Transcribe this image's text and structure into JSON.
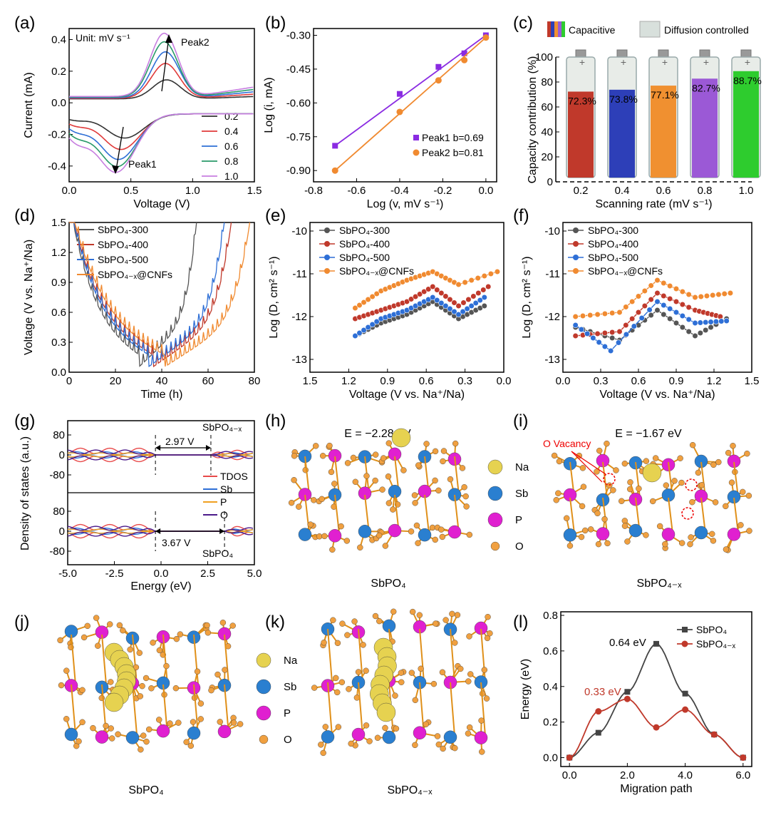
{
  "chart_data": [
    {
      "panel": "(a)",
      "type": "line",
      "xlabel": "Voltage (V)",
      "ylabel": "Current (mA)",
      "xlim": [
        0,
        1.5
      ],
      "ylim": [
        -0.5,
        0.47
      ],
      "xticks": [
        "0.0",
        "0.5",
        "1.0",
        "1.5"
      ],
      "yticks": [
        "0.4",
        "0.2",
        "0.0",
        "-0.2",
        "-0.4"
      ],
      "annotations": [
        "Unit: mV s⁻¹",
        "Peak2",
        "Peak1"
      ],
      "series": [
        {
          "name": "0.2",
          "color": "#333333",
          "peak_oxidation": [
            0.79,
            0.12
          ],
          "peak_reduction": [
            0.45,
            -0.17
          ]
        },
        {
          "name": "0.4",
          "color": "#e03a3a",
          "peak_oxidation": [
            0.78,
            0.22
          ],
          "peak_reduction": [
            0.42,
            -0.25
          ]
        },
        {
          "name": "0.6",
          "color": "#2e6fd6",
          "peak_oxidation": [
            0.78,
            0.29
          ],
          "peak_reduction": [
            0.4,
            -0.32
          ]
        },
        {
          "name": "0.8",
          "color": "#2a9a6a",
          "peak_oxidation": [
            0.77,
            0.35
          ],
          "peak_reduction": [
            0.39,
            -0.37
          ]
        },
        {
          "name": "1.0",
          "color": "#c77ee0",
          "peak_oxidation": [
            0.77,
            0.4
          ],
          "peak_reduction": [
            0.38,
            -0.41
          ]
        }
      ]
    },
    {
      "panel": "(b)",
      "type": "scatter",
      "xlabel": "Log (v, mV s⁻¹)",
      "ylabel": "Log (i, mA)",
      "xlim": [
        -0.8,
        0.05
      ],
      "ylim": [
        -0.95,
        -0.27
      ],
      "xticks": [
        "-0.8",
        "-0.6",
        "-0.4",
        "-0.2",
        "0.0"
      ],
      "yticks": [
        "-0.30",
        "-0.45",
        "-0.60",
        "-0.75",
        "-0.90"
      ],
      "series": [
        {
          "name": "Peak1 b=0.69",
          "color": "#8a2be2",
          "x": [
            -0.7,
            -0.4,
            -0.22,
            -0.1,
            0.0
          ],
          "y": [
            -0.79,
            -0.56,
            -0.44,
            -0.38,
            -0.3
          ]
        },
        {
          "name": "Peak2 b=0.81",
          "color": "#f08a30",
          "x": [
            -0.7,
            -0.4,
            -0.22,
            -0.1,
            0.0
          ],
          "y": [
            -0.9,
            -0.64,
            -0.5,
            -0.41,
            -0.31
          ]
        }
      ]
    },
    {
      "panel": "(c)",
      "type": "bar",
      "xlabel": "Scanning rate (mV s⁻¹)",
      "ylabel": "Capacity contribution (%)",
      "ylim": [
        0,
        100
      ],
      "yticks": [
        "100",
        "80",
        "60",
        "40",
        "20",
        "0"
      ],
      "categories": [
        "0.2",
        "0.4",
        "0.6",
        "0.8",
        "1.0"
      ],
      "values": [
        72.3,
        73.8,
        77.1,
        82.7,
        88.7
      ],
      "labels": [
        "72.3%",
        "73.8%",
        "77.1%",
        "82.7%",
        "88.7%"
      ],
      "colors": [
        "#c0392b",
        "#2d3fb8",
        "#f09030",
        "#9b59d6",
        "#2ecc2e"
      ],
      "legend": [
        "Capacitive",
        "Diffusion controlled"
      ]
    },
    {
      "panel": "(d)",
      "type": "line",
      "xlabel": "Time (h)",
      "ylabel": "Voltage (V vs. Na⁺/Na)",
      "xlim": [
        0,
        80
      ],
      "ylim": [
        0,
        1.5
      ],
      "xticks": [
        "0",
        "20",
        "40",
        "60",
        "80"
      ],
      "yticks": [
        "1.5",
        "1.2",
        "0.9",
        "0.6",
        "0.3",
        "0.0"
      ],
      "series": [
        {
          "name": "SbPO₄-300",
          "color": "#555555",
          "t_min": 30,
          "t_end": 55
        },
        {
          "name": "SbPO₄-400",
          "color": "#c0392b",
          "t_min": 36,
          "t_end": 70
        },
        {
          "name": "SbPO₄-500",
          "color": "#2e6fd6",
          "t_min": 34,
          "t_end": 67
        },
        {
          "name": "SbPO₄₋ₓ@CNFs",
          "color": "#f08a30",
          "t_min": 41,
          "t_end": 78
        }
      ]
    },
    {
      "panel": "(e)",
      "type": "line",
      "xlabel": "Voltage (V vs. Na⁺/Na)",
      "ylabel": "Log (D, cm² s⁻¹)",
      "xlim": [
        1.5,
        0.0
      ],
      "ylim": [
        -13.3,
        -9.8
      ],
      "xticks": [
        "1.5",
        "1.2",
        "0.9",
        "0.6",
        "0.3",
        "0.0"
      ],
      "yticks": [
        "-10",
        "-11",
        "-12",
        "-13"
      ],
      "series": [
        {
          "name": "SbPO₄-300",
          "color": "#555555",
          "x": [
            1.15,
            0.95,
            0.75,
            0.55,
            0.35,
            0.15
          ],
          "y": [
            -12.45,
            -12.15,
            -11.95,
            -11.65,
            -12.05,
            -11.75
          ]
        },
        {
          "name": "SbPO₄-400",
          "color": "#c0392b",
          "x": [
            1.15,
            0.95,
            0.75,
            0.55,
            0.35,
            0.12
          ],
          "y": [
            -12.05,
            -11.85,
            -11.65,
            -11.3,
            -11.75,
            -11.3
          ]
        },
        {
          "name": "SbPO₄-500",
          "color": "#2e6fd6",
          "x": [
            1.15,
            0.95,
            0.75,
            0.55,
            0.35,
            0.15
          ],
          "y": [
            -12.45,
            -12.05,
            -11.85,
            -11.55,
            -11.95,
            -11.55
          ]
        },
        {
          "name": "SbPO₄₋ₓ@CNFs",
          "color": "#f08a30",
          "x": [
            1.15,
            0.95,
            0.75,
            0.55,
            0.35,
            0.05
          ],
          "y": [
            -11.8,
            -11.4,
            -11.15,
            -10.95,
            -11.25,
            -10.95
          ]
        }
      ]
    },
    {
      "panel": "(f)",
      "type": "line",
      "xlabel": "Voltage (V vs. Na⁺/Na)",
      "ylabel": "Log (D, cm² s⁻¹)",
      "xlim": [
        0.0,
        1.5
      ],
      "ylim": [
        -13.3,
        -9.8
      ],
      "xticks": [
        "0.0",
        "0.3",
        "0.6",
        "0.9",
        "1.2",
        "1.5"
      ],
      "yticks": [
        "-10",
        "-11",
        "-12",
        "-13"
      ],
      "series": [
        {
          "name": "SbPO₄-300",
          "color": "#555555",
          "x": [
            0.1,
            0.45,
            0.75,
            1.05,
            1.3
          ],
          "y": [
            -12.25,
            -12.55,
            -11.85,
            -12.45,
            -12.05
          ]
        },
        {
          "name": "SbPO₄-400",
          "color": "#c0392b",
          "x": [
            0.1,
            0.45,
            0.75,
            1.05,
            1.25
          ],
          "y": [
            -12.45,
            -12.35,
            -11.45,
            -11.85,
            -12.0
          ]
        },
        {
          "name": "SbPO₄-500",
          "color": "#2e6fd6",
          "x": [
            0.1,
            0.38,
            0.75,
            1.05,
            1.3
          ],
          "y": [
            -12.2,
            -12.8,
            -11.65,
            -12.15,
            -12.1
          ]
        },
        {
          "name": "SbPO₄₋ₓ@CNFs",
          "color": "#f08a30",
          "x": [
            0.1,
            0.45,
            0.75,
            1.05,
            1.33
          ],
          "y": [
            -12.0,
            -11.9,
            -11.15,
            -11.55,
            -11.45
          ]
        }
      ]
    },
    {
      "panel": "(g)",
      "type": "line",
      "xlabel": "Energy (eV)",
      "ylabel": "Density of states (a.u.)",
      "xlim": [
        -5.0,
        5.0
      ],
      "xticks": [
        "-5.0",
        "-2.5",
        "0.0",
        "2.5",
        "5.0"
      ],
      "yticks": [
        "80",
        "0",
        "-80"
      ],
      "annotations": [
        "SbPO₄₋ₓ",
        "2.97 V",
        "3.67 V",
        "SbPO₄"
      ],
      "series": [
        {
          "name": "TDOS",
          "color": "#e84a4a"
        },
        {
          "name": "Sb",
          "color": "#2e6fd6"
        },
        {
          "name": "P",
          "color": "#f0a020"
        },
        {
          "name": "O",
          "color": "#4b1a8a"
        }
      ]
    },
    {
      "panel": "(l)",
      "type": "line",
      "xlabel": "Migration path",
      "ylabel": "Energy (eV)",
      "xlim": [
        -0.3,
        6.3
      ],
      "ylim": [
        -0.05,
        0.82
      ],
      "xticks": [
        "0.0",
        "2.0",
        "4.0",
        "6.0"
      ],
      "yticks": [
        "0.8",
        "0.6",
        "0.4",
        "0.2",
        "0.0"
      ],
      "annotations": [
        "0.64 eV",
        "0.33 eV"
      ],
      "series": [
        {
          "name": "SbPO₄",
          "color": "#444444",
          "x": [
            0,
            1,
            2,
            3,
            4,
            5,
            6
          ],
          "y": [
            0,
            0.14,
            0.37,
            0.64,
            0.36,
            0.13,
            0
          ]
        },
        {
          "name": "SbPO₄₋ₓ",
          "color": "#c0392b",
          "x": [
            0,
            1,
            2,
            3,
            4,
            5,
            6
          ],
          "y": [
            0,
            0.26,
            0.33,
            0.17,
            0.27,
            0.13,
            0
          ]
        }
      ]
    }
  ],
  "structures": {
    "h": {
      "label": "(h)",
      "energy": "E = −2.28 eV",
      "caption": "SbPO₄",
      "legend": [
        "Na",
        "Sb",
        "P",
        "O"
      ]
    },
    "i": {
      "label": "(i)",
      "energy": "E = −1.67 eV",
      "caption": "SbPO₄₋ₓ",
      "vacancy_label": "O Vacancy"
    },
    "j": {
      "label": "(j)",
      "caption": "SbPO₄"
    },
    "k": {
      "label": "(k)",
      "caption": "SbPO₄₋ₓ",
      "legend": [
        "Na",
        "Sb",
        "P",
        "O"
      ]
    }
  },
  "atom_colors": {
    "Na": "#e6d250",
    "Sb": "#2a7fd0",
    "P": "#e020d0",
    "O": "#f0a040"
  }
}
